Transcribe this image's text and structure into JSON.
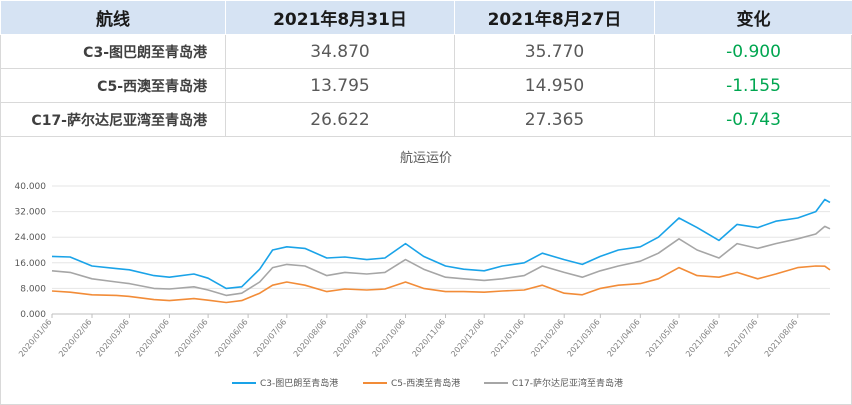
{
  "table": {
    "headers": [
      "航线",
      "2021年8月31日",
      "2021年8月27日",
      "变化"
    ],
    "rows": [
      {
        "route": "C3-图巴朗至青岛港",
        "current": "34.870",
        "previous": "35.770",
        "change": "-0.900"
      },
      {
        "route": "C5-西澳至青岛港",
        "current": "13.795",
        "previous": "14.950",
        "change": "-1.155"
      },
      {
        "route": "C17-萨尔达尼亚湾至青岛港",
        "current": "26.622",
        "previous": "27.365",
        "change": "-0.743"
      }
    ]
  },
  "chart_data": {
    "type": "line",
    "title": "航运运价",
    "xlabel": "",
    "ylabel": "",
    "ylim": [
      0,
      40
    ],
    "yticks": [
      "0.000",
      "8.000",
      "16.000",
      "24.000",
      "32.000",
      "40.000"
    ],
    "x_range": [
      "2020/01/06",
      "2021/08/31"
    ],
    "xticks": [
      "2020/01/06",
      "2020/02/06",
      "2020/03/06",
      "2020/04/06",
      "2020/05/06",
      "2020/06/06",
      "2020/07/06",
      "2020/08/06",
      "2020/09/06",
      "2020/10/06",
      "2020/11/06",
      "2020/12/06",
      "2021/01/06",
      "2021/02/06",
      "2021/03/06",
      "2021/04/06",
      "2021/05/06",
      "2021/06/06",
      "2021/07/06",
      "2021/08/06"
    ],
    "grid": true,
    "legend": "bottom",
    "series": [
      {
        "name": "C3-图巴朗至青岛港",
        "color": "#1aa3e8",
        "points": [
          [
            "2020/01/06",
            18.0
          ],
          [
            "2020/01/20",
            17.8
          ],
          [
            "2020/02/06",
            15.0
          ],
          [
            "2020/02/25",
            14.2
          ],
          [
            "2020/03/06",
            13.8
          ],
          [
            "2020/03/25",
            12.0
          ],
          [
            "2020/04/06",
            11.5
          ],
          [
            "2020/04/25",
            12.5
          ],
          [
            "2020/05/06",
            11.2
          ],
          [
            "2020/05/20",
            8.0
          ],
          [
            "2020/06/01",
            8.5
          ],
          [
            "2020/06/15",
            14.0
          ],
          [
            "2020/06/25",
            20.0
          ],
          [
            "2020/07/06",
            21.0
          ],
          [
            "2020/07/20",
            20.5
          ],
          [
            "2020/08/06",
            17.5
          ],
          [
            "2020/08/20",
            17.8
          ],
          [
            "2020/09/06",
            17.0
          ],
          [
            "2020/09/20",
            17.5
          ],
          [
            "2020/10/06",
            22.0
          ],
          [
            "2020/10/20",
            18.0
          ],
          [
            "2020/11/06",
            15.0
          ],
          [
            "2020/11/20",
            14.0
          ],
          [
            "2020/12/06",
            13.5
          ],
          [
            "2020/12/20",
            15.0
          ],
          [
            "2021/01/06",
            16.0
          ],
          [
            "2021/01/20",
            19.0
          ],
          [
            "2021/02/06",
            17.0
          ],
          [
            "2021/02/20",
            15.5
          ],
          [
            "2021/03/06",
            18.0
          ],
          [
            "2021/03/20",
            20.0
          ],
          [
            "2021/04/06",
            21.0
          ],
          [
            "2021/04/20",
            24.0
          ],
          [
            "2021/05/06",
            30.0
          ],
          [
            "2021/05/20",
            27.0
          ],
          [
            "2021/06/06",
            23.0
          ],
          [
            "2021/06/20",
            28.0
          ],
          [
            "2021/07/06",
            27.0
          ],
          [
            "2021/07/20",
            29.0
          ],
          [
            "2021/08/06",
            30.0
          ],
          [
            "2021/08/20",
            32.0
          ],
          [
            "2021/08/27",
            35.77
          ],
          [
            "2021/08/31",
            34.87
          ]
        ]
      },
      {
        "name": "C5-西澳至青岛港",
        "color": "#f28c38",
        "points": [
          [
            "2020/01/06",
            7.2
          ],
          [
            "2020/01/20",
            6.8
          ],
          [
            "2020/02/06",
            6.0
          ],
          [
            "2020/02/25",
            5.8
          ],
          [
            "2020/03/06",
            5.5
          ],
          [
            "2020/03/25",
            4.5
          ],
          [
            "2020/04/06",
            4.2
          ],
          [
            "2020/04/25",
            4.8
          ],
          [
            "2020/05/06",
            4.3
          ],
          [
            "2020/05/20",
            3.6
          ],
          [
            "2020/06/01",
            4.2
          ],
          [
            "2020/06/15",
            6.5
          ],
          [
            "2020/06/25",
            9.0
          ],
          [
            "2020/07/06",
            10.0
          ],
          [
            "2020/07/20",
            9.0
          ],
          [
            "2020/08/06",
            7.0
          ],
          [
            "2020/08/20",
            7.8
          ],
          [
            "2020/09/06",
            7.5
          ],
          [
            "2020/09/20",
            7.8
          ],
          [
            "2020/10/06",
            10.0
          ],
          [
            "2020/10/20",
            8.0
          ],
          [
            "2020/11/06",
            7.0
          ],
          [
            "2020/11/20",
            7.0
          ],
          [
            "2020/12/06",
            6.8
          ],
          [
            "2020/12/20",
            7.2
          ],
          [
            "2021/01/06",
            7.5
          ],
          [
            "2021/01/20",
            9.0
          ],
          [
            "2021/02/06",
            6.5
          ],
          [
            "2021/02/20",
            6.0
          ],
          [
            "2021/03/06",
            8.0
          ],
          [
            "2021/03/20",
            9.0
          ],
          [
            "2021/04/06",
            9.5
          ],
          [
            "2021/04/20",
            11.0
          ],
          [
            "2021/05/06",
            14.5
          ],
          [
            "2021/05/20",
            12.0
          ],
          [
            "2021/06/06",
            11.5
          ],
          [
            "2021/06/20",
            13.0
          ],
          [
            "2021/07/06",
            11.0
          ],
          [
            "2021/07/20",
            12.5
          ],
          [
            "2021/08/06",
            14.5
          ],
          [
            "2021/08/20",
            15.0
          ],
          [
            "2021/08/27",
            14.95
          ],
          [
            "2021/08/31",
            13.795
          ]
        ]
      },
      {
        "name": "C17-萨尔达尼亚湾至青岛港",
        "color": "#a6a6a6",
        "points": [
          [
            "2020/01/06",
            13.5
          ],
          [
            "2020/01/20",
            13.0
          ],
          [
            "2020/02/06",
            11.0
          ],
          [
            "2020/02/25",
            10.0
          ],
          [
            "2020/03/06",
            9.5
          ],
          [
            "2020/03/25",
            8.0
          ],
          [
            "2020/04/06",
            7.8
          ],
          [
            "2020/04/25",
            8.5
          ],
          [
            "2020/05/06",
            7.5
          ],
          [
            "2020/05/20",
            5.8
          ],
          [
            "2020/06/01",
            6.5
          ],
          [
            "2020/06/15",
            10.0
          ],
          [
            "2020/06/25",
            14.5
          ],
          [
            "2020/07/06",
            15.5
          ],
          [
            "2020/07/20",
            15.0
          ],
          [
            "2020/08/06",
            12.0
          ],
          [
            "2020/08/20",
            13.0
          ],
          [
            "2020/09/06",
            12.5
          ],
          [
            "2020/09/20",
            13.0
          ],
          [
            "2020/10/06",
            17.0
          ],
          [
            "2020/10/20",
            14.0
          ],
          [
            "2020/11/06",
            11.5
          ],
          [
            "2020/11/20",
            11.0
          ],
          [
            "2020/12/06",
            10.5
          ],
          [
            "2020/12/20",
            11.0
          ],
          [
            "2021/01/06",
            12.0
          ],
          [
            "2021/01/20",
            15.0
          ],
          [
            "2021/02/06",
            13.0
          ],
          [
            "2021/02/20",
            11.5
          ],
          [
            "2021/03/06",
            13.5
          ],
          [
            "2021/03/20",
            15.0
          ],
          [
            "2021/04/06",
            16.5
          ],
          [
            "2021/04/20",
            19.0
          ],
          [
            "2021/05/06",
            23.5
          ],
          [
            "2021/05/20",
            20.0
          ],
          [
            "2021/06/06",
            17.5
          ],
          [
            "2021/06/20",
            22.0
          ],
          [
            "2021/07/06",
            20.5
          ],
          [
            "2021/07/20",
            22.0
          ],
          [
            "2021/08/06",
            23.5
          ],
          [
            "2021/08/20",
            25.0
          ],
          [
            "2021/08/27",
            27.365
          ],
          [
            "2021/08/31",
            26.622
          ]
        ]
      }
    ]
  }
}
